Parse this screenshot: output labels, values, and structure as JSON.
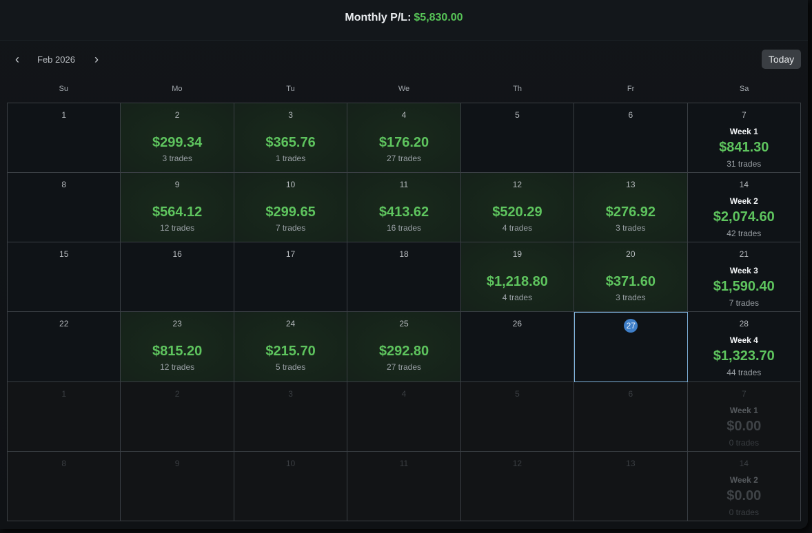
{
  "header": {
    "monthly_label": "Monthly P/L:",
    "monthly_value": "$5,830.00"
  },
  "nav": {
    "prev_icon": "‹",
    "next_icon": "›",
    "month": "Feb 2026",
    "today_button": "Today"
  },
  "weekdays": [
    "Su",
    "Mo",
    "Tu",
    "We",
    "Th",
    "Fr",
    "Sa"
  ],
  "colors": {
    "profit": "#5ec45e",
    "today_ring": "#7fb3dc",
    "today_badge": "#3f7fc8"
  },
  "weeks": [
    {
      "days": [
        {
          "d": "1"
        },
        {
          "d": "2",
          "pnl": "$299.34",
          "trades": "3 trades"
        },
        {
          "d": "3",
          "pnl": "$365.76",
          "trades": "1 trades"
        },
        {
          "d": "4",
          "pnl": "$176.20",
          "trades": "27 trades"
        },
        {
          "d": "5"
        },
        {
          "d": "6"
        }
      ],
      "sat": {
        "d": "7"
      },
      "summary": {
        "label": "Week 1",
        "pnl": "$841.30",
        "trades": "31 trades"
      }
    },
    {
      "days": [
        {
          "d": "8"
        },
        {
          "d": "9",
          "pnl": "$564.12",
          "trades": "12 trades"
        },
        {
          "d": "10",
          "pnl": "$299.65",
          "trades": "7 trades"
        },
        {
          "d": "11",
          "pnl": "$413.62",
          "trades": "16 trades"
        },
        {
          "d": "12",
          "pnl": "$520.29",
          "trades": "4 trades"
        },
        {
          "d": "13",
          "pnl": "$276.92",
          "trades": "3 trades"
        }
      ],
      "sat": {
        "d": "14"
      },
      "summary": {
        "label": "Week 2",
        "pnl": "$2,074.60",
        "trades": "42 trades"
      }
    },
    {
      "days": [
        {
          "d": "15"
        },
        {
          "d": "16"
        },
        {
          "d": "17"
        },
        {
          "d": "18"
        },
        {
          "d": "19",
          "pnl": "$1,218.80",
          "trades": "4 trades"
        },
        {
          "d": "20",
          "pnl": "$371.60",
          "trades": "3 trades"
        }
      ],
      "sat": {
        "d": "21"
      },
      "summary": {
        "label": "Week 3",
        "pnl": "$1,590.40",
        "trades": "7 trades"
      }
    },
    {
      "days": [
        {
          "d": "22"
        },
        {
          "d": "23",
          "pnl": "$815.20",
          "trades": "12 trades"
        },
        {
          "d": "24",
          "pnl": "$215.70",
          "trades": "5 trades"
        },
        {
          "d": "25",
          "pnl": "$292.80",
          "trades": "27 trades"
        },
        {
          "d": "26"
        },
        {
          "d": "27",
          "today": true
        }
      ],
      "sat": {
        "d": "28"
      },
      "summary": {
        "label": "Week 4",
        "pnl": "$1,323.70",
        "trades": "44 trades"
      }
    },
    {
      "dim": true,
      "days": [
        {
          "d": "1"
        },
        {
          "d": "2"
        },
        {
          "d": "3"
        },
        {
          "d": "4"
        },
        {
          "d": "5"
        },
        {
          "d": "6"
        }
      ],
      "sat": {
        "d": "7"
      },
      "summary": {
        "label": "Week 1",
        "pnl": "$0.00",
        "trades": "0 trades"
      }
    },
    {
      "dim": true,
      "days": [
        {
          "d": "8"
        },
        {
          "d": "9"
        },
        {
          "d": "10"
        },
        {
          "d": "11"
        },
        {
          "d": "12"
        },
        {
          "d": "13"
        }
      ],
      "sat": {
        "d": "14"
      },
      "summary": {
        "label": "Week 2",
        "pnl": "$0.00",
        "trades": "0 trades"
      }
    }
  ]
}
